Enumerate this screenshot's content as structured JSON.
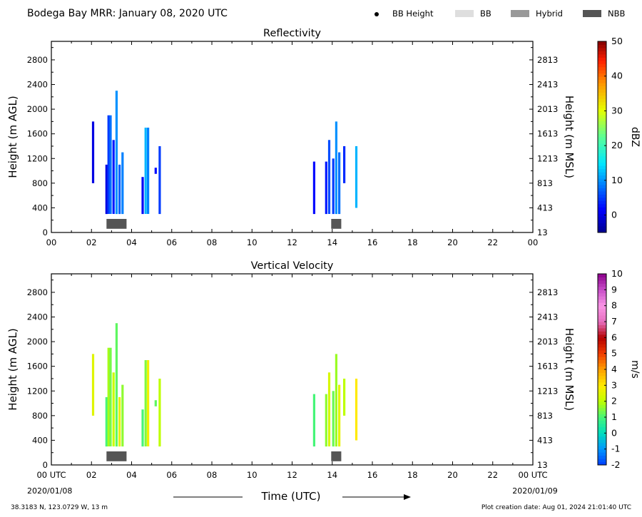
{
  "header": {
    "title": "Bodega Bay MRR:  January 08, 2020 UTC",
    "legend": [
      {
        "label": "BB Height",
        "kind": "dot",
        "color": "#000000"
      },
      {
        "label": "BB",
        "kind": "box",
        "color": "#dedede"
      },
      {
        "label": "Hybrid",
        "kind": "box",
        "color": "#999999"
      },
      {
        "label": "NBB",
        "kind": "box",
        "color": "#555555"
      }
    ]
  },
  "footer": {
    "location": "38.3183 N, 123.0729 W, 13 m",
    "creation": "Plot creation date: Aug 01, 2024 21:01:40 UTC",
    "xlabel": "Time (UTC)",
    "start_date": "2020/01/08",
    "end_date": "2020/01/09"
  },
  "chart_data": [
    {
      "type": "heatmap",
      "title": "Reflectivity",
      "ylabel": "Height (m AGL)",
      "y2label": "Height (m MSL)",
      "xlim": [
        0,
        24
      ],
      "ylim": [
        0,
        3100
      ],
      "xticks": [
        "00",
        "02",
        "04",
        "06",
        "08",
        "10",
        "12",
        "14",
        "16",
        "18",
        "20",
        "22",
        "00"
      ],
      "yticks": [
        0,
        400,
        800,
        1200,
        1600,
        2000,
        2400,
        2800
      ],
      "y2ticks": [
        13,
        413,
        813,
        1213,
        1613,
        2013,
        2413,
        2813
      ],
      "colorbar": {
        "label": "dBZ",
        "range": [
          -5,
          50
        ],
        "ticks": [
          0,
          10,
          20,
          30,
          40,
          50
        ]
      },
      "cells": [
        {
          "t": 2.08,
          "h0": 800,
          "h1": 1800,
          "v": 0
        },
        {
          "t": 2.75,
          "h0": 300,
          "h1": 1100,
          "v": 0
        },
        {
          "t": 2.85,
          "h0": 300,
          "h1": 1900,
          "v": 5
        },
        {
          "t": 2.95,
          "h0": 300,
          "h1": 1900,
          "v": 8
        },
        {
          "t": 3.1,
          "h0": 300,
          "h1": 1500,
          "v": 3
        },
        {
          "t": 3.25,
          "h0": 300,
          "h1": 2300,
          "v": 10
        },
        {
          "t": 3.4,
          "h0": 300,
          "h1": 1100,
          "v": 7
        },
        {
          "t": 3.55,
          "h0": 300,
          "h1": 1300,
          "v": 9
        },
        {
          "t": 4.55,
          "h0": 300,
          "h1": 900,
          "v": 1
        },
        {
          "t": 4.7,
          "h0": 300,
          "h1": 1700,
          "v": 12
        },
        {
          "t": 4.82,
          "h0": 300,
          "h1": 1700,
          "v": 9
        },
        {
          "t": 5.2,
          "h0": 950,
          "h1": 1050,
          "v": 2
        },
        {
          "t": 5.4,
          "h0": 300,
          "h1": 1400,
          "v": 5
        },
        {
          "t": 13.1,
          "h0": 300,
          "h1": 1150,
          "v": 2
        },
        {
          "t": 13.7,
          "h0": 300,
          "h1": 1150,
          "v": 3
        },
        {
          "t": 13.85,
          "h0": 300,
          "h1": 1500,
          "v": 6
        },
        {
          "t": 14.05,
          "h0": 300,
          "h1": 1200,
          "v": 5
        },
        {
          "t": 14.2,
          "h0": 300,
          "h1": 1800,
          "v": 10
        },
        {
          "t": 14.35,
          "h0": 300,
          "h1": 1300,
          "v": 8
        },
        {
          "t": 14.6,
          "h0": 800,
          "h1": 1400,
          "v": 4
        },
        {
          "t": 15.2,
          "h0": 400,
          "h1": 1400,
          "v": 12
        }
      ],
      "bright_band": [
        {
          "start": 2.75,
          "end": 3.75,
          "type": "NBB"
        },
        {
          "start": 13.95,
          "end": 14.45,
          "type": "NBB"
        }
      ]
    },
    {
      "type": "heatmap",
      "title": "Vertical Velocity",
      "ylabel": "Height (m AGL)",
      "y2label": "Height (m MSL)",
      "xlim": [
        0,
        24
      ],
      "ylim": [
        0,
        3100
      ],
      "xticks": [
        "00 UTC",
        "02",
        "04",
        "06",
        "08",
        "10",
        "12",
        "14",
        "16",
        "18",
        "20",
        "22",
        "00 UTC"
      ],
      "yticks": [
        0,
        400,
        800,
        1200,
        1600,
        2000,
        2400,
        2800
      ],
      "y2ticks": [
        13,
        413,
        813,
        1213,
        1613,
        2013,
        2413,
        2813
      ],
      "colorbar": {
        "label": "m/s",
        "range": [
          -2,
          10
        ],
        "ticks": [
          -2,
          -1,
          0,
          1,
          2,
          3,
          4,
          5,
          6,
          7,
          8,
          9,
          10
        ]
      },
      "cells": [
        {
          "t": 2.08,
          "h0": 800,
          "h1": 1800,
          "v": 2.5
        },
        {
          "t": 2.75,
          "h0": 300,
          "h1": 1100,
          "v": 1.0
        },
        {
          "t": 2.85,
          "h0": 300,
          "h1": 1900,
          "v": 1.8
        },
        {
          "t": 2.95,
          "h0": 300,
          "h1": 1900,
          "v": 1.4
        },
        {
          "t": 3.1,
          "h0": 300,
          "h1": 1500,
          "v": 2.2
        },
        {
          "t": 3.25,
          "h0": 300,
          "h1": 2300,
          "v": 1.2
        },
        {
          "t": 3.4,
          "h0": 300,
          "h1": 1100,
          "v": 2.6
        },
        {
          "t": 3.55,
          "h0": 300,
          "h1": 1300,
          "v": 1.6
        },
        {
          "t": 4.55,
          "h0": 300,
          "h1": 900,
          "v": 1.0
        },
        {
          "t": 4.7,
          "h0": 300,
          "h1": 1700,
          "v": 1.5
        },
        {
          "t": 4.82,
          "h0": 300,
          "h1": 1700,
          "v": 2.8
        },
        {
          "t": 5.2,
          "h0": 950,
          "h1": 1050,
          "v": 1.2
        },
        {
          "t": 5.4,
          "h0": 300,
          "h1": 1400,
          "v": 2.0
        },
        {
          "t": 13.1,
          "h0": 300,
          "h1": 1150,
          "v": 1.0
        },
        {
          "t": 13.7,
          "h0": 300,
          "h1": 1150,
          "v": 1.6
        },
        {
          "t": 13.85,
          "h0": 300,
          "h1": 1500,
          "v": 2.4
        },
        {
          "t": 14.05,
          "h0": 300,
          "h1": 1200,
          "v": 1.3
        },
        {
          "t": 14.2,
          "h0": 300,
          "h1": 1800,
          "v": 1.7
        },
        {
          "t": 14.35,
          "h0": 300,
          "h1": 1300,
          "v": 2.6
        },
        {
          "t": 14.6,
          "h0": 800,
          "h1": 1400,
          "v": 2.0
        },
        {
          "t": 15.2,
          "h0": 400,
          "h1": 1400,
          "v": 3.0
        }
      ],
      "bright_band": [
        {
          "start": 2.75,
          "end": 3.75,
          "type": "NBB"
        },
        {
          "start": 13.95,
          "end": 14.45,
          "type": "NBB"
        }
      ]
    }
  ]
}
